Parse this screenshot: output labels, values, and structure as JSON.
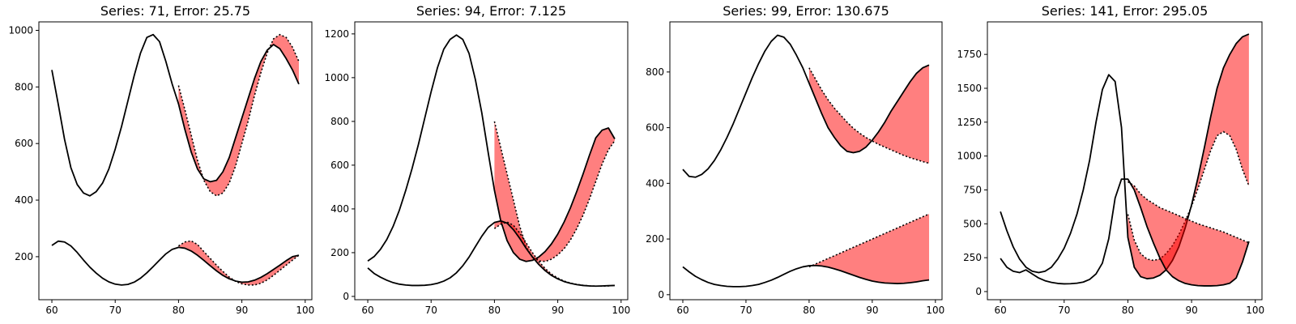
{
  "chart_data": [
    {
      "type": "line",
      "title": "Series: 71, Error: 25.75",
      "xlabel": "",
      "ylabel": "",
      "xlim": [
        57.95,
        101.05
      ],
      "ylim": [
        48,
        1030
      ],
      "xticks": [
        60,
        70,
        80,
        90,
        100
      ],
      "yticks": [
        200,
        400,
        600,
        800,
        1000
      ],
      "grid": false,
      "forecast_start": 80,
      "error_fill_color": "#ff0000",
      "series": [
        {
          "x": [
            60,
            61,
            62,
            63,
            64,
            65,
            66,
            67,
            68,
            69,
            70,
            71,
            72,
            73,
            74,
            75,
            76,
            77,
            78,
            79,
            80,
            81,
            82,
            83,
            84,
            85,
            86,
            87,
            88,
            89,
            90,
            91,
            92,
            93,
            94,
            95,
            96,
            97,
            98,
            99
          ],
          "values": [
            860,
            740,
            615,
            515,
            455,
            425,
            415,
            430,
            460,
            510,
            580,
            660,
            750,
            840,
            920,
            975,
            985,
            960,
            890,
            810,
            740,
            650,
            570,
            510,
            475,
            465,
            470,
            500,
            550,
            620,
            690,
            760,
            830,
            890,
            930,
            950,
            935,
            900,
            860,
            810
          ],
          "forecast": [
            null,
            null,
            null,
            null,
            null,
            null,
            null,
            null,
            null,
            null,
            null,
            null,
            null,
            null,
            null,
            null,
            null,
            null,
            null,
            null,
            805,
            720,
            630,
            540,
            470,
            430,
            415,
            425,
            460,
            520,
            600,
            680,
            770,
            850,
            920,
            970,
            985,
            975,
            940,
            890
          ]
        },
        {
          "x": [
            60,
            61,
            62,
            63,
            64,
            65,
            66,
            67,
            68,
            69,
            70,
            71,
            72,
            73,
            74,
            75,
            76,
            77,
            78,
            79,
            80,
            81,
            82,
            83,
            84,
            85,
            86,
            87,
            88,
            89,
            90,
            91,
            92,
            93,
            94,
            95,
            96,
            97,
            98,
            99
          ],
          "values": [
            240,
            255,
            252,
            238,
            215,
            188,
            163,
            142,
            124,
            111,
            103,
            100,
            102,
            110,
            124,
            143,
            165,
            188,
            210,
            226,
            233,
            230,
            220,
            205,
            187,
            168,
            150,
            134,
            122,
            114,
            110,
            111,
            117,
            127,
            140,
            155,
            170,
            186,
            200,
            205
          ],
          "forecast": [
            null,
            null,
            null,
            null,
            null,
            null,
            null,
            null,
            null,
            null,
            null,
            null,
            null,
            null,
            null,
            null,
            null,
            null,
            null,
            null,
            238,
            252,
            256,
            243,
            218,
            194,
            170,
            148,
            128,
            113,
            104,
            100,
            100,
            106,
            118,
            134,
            152,
            170,
            188,
            205
          ]
        }
      ]
    },
    {
      "type": "line",
      "title": "Series: 94, Error: 7.125",
      "xlabel": "",
      "ylabel": "",
      "xlim": [
        57.95,
        101.05
      ],
      "ylim": [
        -15,
        1255
      ],
      "xticks": [
        60,
        70,
        80,
        90,
        100
      ],
      "yticks": [
        0,
        200,
        400,
        600,
        800,
        1000,
        1200
      ],
      "grid": false,
      "forecast_start": 80,
      "error_fill_color": "#ff0000",
      "series": [
        {
          "x": [
            60,
            61,
            62,
            63,
            64,
            65,
            66,
            67,
            68,
            69,
            70,
            71,
            72,
            73,
            74,
            75,
            76,
            77,
            78,
            79,
            80,
            81,
            82,
            83,
            84,
            85,
            86,
            87,
            88,
            89,
            90,
            91,
            92,
            93,
            94,
            95,
            96,
            97,
            98,
            99
          ],
          "values": [
            162,
            182,
            215,
            260,
            320,
            395,
            485,
            585,
            695,
            815,
            935,
            1045,
            1130,
            1175,
            1195,
            1175,
            1110,
            990,
            840,
            660,
            485,
            345,
            255,
            200,
            170,
            160,
            165,
            180,
            205,
            240,
            285,
            340,
            405,
            480,
            560,
            645,
            725,
            760,
            770,
            720
          ],
          "forecast": [
            null,
            null,
            null,
            null,
            null,
            null,
            null,
            null,
            null,
            null,
            null,
            null,
            null,
            null,
            null,
            null,
            null,
            null,
            null,
            null,
            800,
            680,
            560,
            440,
            320,
            230,
            180,
            162,
            160,
            170,
            190,
            218,
            258,
            310,
            372,
            445,
            525,
            605,
            670,
            712
          ]
        },
        {
          "x": [
            60,
            61,
            62,
            63,
            64,
            65,
            66,
            67,
            68,
            69,
            70,
            71,
            72,
            73,
            74,
            75,
            76,
            77,
            78,
            79,
            80,
            81,
            82,
            83,
            84,
            85,
            86,
            87,
            88,
            89,
            90,
            91,
            92,
            93,
            94,
            95,
            96,
            97,
            98,
            99
          ],
          "values": [
            130,
            105,
            88,
            74,
            63,
            56,
            52,
            50,
            50,
            51,
            54,
            60,
            70,
            85,
            108,
            140,
            180,
            228,
            275,
            315,
            338,
            345,
            335,
            305,
            265,
            220,
            180,
            146,
            118,
            96,
            80,
            68,
            60,
            54,
            50,
            48,
            47,
            48,
            49,
            50
          ],
          "forecast": [
            null,
            null,
            null,
            null,
            null,
            null,
            null,
            null,
            null,
            null,
            null,
            null,
            null,
            null,
            null,
            null,
            null,
            null,
            null,
            null,
            310,
            330,
            340,
            325,
            290,
            245,
            200,
            160,
            128,
            102,
            84,
            70,
            61,
            55,
            51,
            48,
            47,
            47,
            48,
            50
          ]
        }
      ]
    },
    {
      "type": "line",
      "title": "Series: 99, Error: 130.675",
      "xlabel": "",
      "ylabel": "",
      "xlim": [
        57.95,
        101.05
      ],
      "ylim": [
        -18,
        980
      ],
      "xticks": [
        60,
        70,
        80,
        90,
        100
      ],
      "yticks": [
        0,
        200,
        400,
        600,
        800
      ],
      "grid": false,
      "forecast_start": 80,
      "error_fill_color": "#ff0000",
      "series": [
        {
          "x": [
            60,
            61,
            62,
            63,
            64,
            65,
            66,
            67,
            68,
            69,
            70,
            71,
            72,
            73,
            74,
            75,
            76,
            77,
            78,
            79,
            80,
            81,
            82,
            83,
            84,
            85,
            86,
            87,
            88,
            89,
            90,
            91,
            92,
            93,
            94,
            95,
            96,
            97,
            98,
            99
          ],
          "values": [
            450,
            425,
            422,
            432,
            452,
            482,
            520,
            565,
            615,
            670,
            725,
            780,
            830,
            875,
            910,
            932,
            925,
            900,
            860,
            815,
            760,
            705,
            650,
            600,
            565,
            535,
            515,
            510,
            515,
            530,
            555,
            585,
            620,
            660,
            695,
            730,
            765,
            795,
            815,
            825
          ],
          "forecast": [
            null,
            null,
            null,
            null,
            null,
            null,
            null,
            null,
            null,
            null,
            null,
            null,
            null,
            null,
            null,
            null,
            null,
            null,
            null,
            null,
            815,
            775,
            735,
            700,
            670,
            645,
            620,
            598,
            580,
            565,
            552,
            540,
            530,
            520,
            510,
            500,
            492,
            485,
            478,
            472
          ]
        },
        {
          "x": [
            60,
            61,
            62,
            63,
            64,
            65,
            66,
            67,
            68,
            69,
            70,
            71,
            72,
            73,
            74,
            75,
            76,
            77,
            78,
            79,
            80,
            81,
            82,
            83,
            84,
            85,
            86,
            87,
            88,
            89,
            90,
            91,
            92,
            93,
            94,
            95,
            96,
            97,
            98,
            99
          ],
          "values": [
            100,
            82,
            66,
            54,
            44,
            37,
            33,
            30,
            29,
            29,
            30,
            33,
            37,
            44,
            52,
            62,
            73,
            84,
            93,
            100,
            104,
            105,
            103,
            99,
            93,
            86,
            78,
            70,
            62,
            55,
            49,
            45,
            42,
            41,
            40,
            41,
            43,
            46,
            50,
            53
          ],
          "forecast": [
            null,
            null,
            null,
            null,
            null,
            null,
            null,
            null,
            null,
            null,
            null,
            null,
            null,
            null,
            null,
            null,
            null,
            null,
            null,
            null,
            100,
            110,
            120,
            130,
            140,
            150,
            160,
            170,
            180,
            190,
            200,
            210,
            220,
            230,
            240,
            250,
            260,
            270,
            280,
            290
          ]
        }
      ]
    },
    {
      "type": "line",
      "title": "Series: 141, Error: 295.05",
      "xlabel": "",
      "ylabel": "",
      "xlim": [
        57.95,
        101.05
      ],
      "ylim": [
        -60,
        1990
      ],
      "xticks": [
        60,
        70,
        80,
        90,
        100
      ],
      "yticks": [
        0,
        250,
        500,
        750,
        1000,
        1250,
        1500,
        1750
      ],
      "grid": false,
      "forecast_start": 80,
      "error_fill_color": "#ff0000",
      "series": [
        {
          "x": [
            60,
            61,
            62,
            63,
            64,
            65,
            66,
            67,
            68,
            69,
            70,
            71,
            72,
            73,
            74,
            75,
            76,
            77,
            78,
            79,
            80,
            81,
            82,
            83,
            84,
            85,
            86,
            87,
            88,
            89,
            90,
            91,
            92,
            93,
            94,
            95,
            96,
            97,
            98,
            99
          ],
          "values": [
            590,
            450,
            330,
            240,
            180,
            150,
            140,
            150,
            180,
            240,
            320,
            430,
            570,
            750,
            970,
            1250,
            1490,
            1600,
            1550,
            1210,
            400,
            180,
            110,
            95,
            100,
            120,
            160,
            230,
            330,
            470,
            640,
            840,
            1060,
            1290,
            1500,
            1650,
            1750,
            1830,
            1880,
            1900
          ],
          "forecast": [
            null,
            null,
            null,
            null,
            null,
            null,
            null,
            null,
            null,
            null,
            null,
            null,
            null,
            null,
            null,
            null,
            null,
            null,
            null,
            null,
            570,
            380,
            280,
            240,
            230,
            240,
            280,
            340,
            420,
            520,
            630,
            760,
            900,
            1040,
            1150,
            1180,
            1150,
            1050,
            900,
            780
          ]
        },
        {
          "x": [
            60,
            61,
            62,
            63,
            64,
            65,
            66,
            67,
            68,
            69,
            70,
            71,
            72,
            73,
            74,
            75,
            76,
            77,
            78,
            79,
            80,
            81,
            82,
            83,
            84,
            85,
            86,
            87,
            88,
            89,
            90,
            91,
            92,
            93,
            94,
            95,
            96,
            97,
            98,
            99
          ],
          "values": [
            245,
            180,
            150,
            140,
            160,
            130,
            100,
            80,
            68,
            60,
            57,
            58,
            62,
            70,
            90,
            130,
            210,
            390,
            690,
            830,
            830,
            750,
            620,
            480,
            360,
            250,
            160,
            110,
            80,
            60,
            50,
            44,
            42,
            42,
            44,
            50,
            62,
            100,
            220,
            370
          ],
          "forecast": [
            null,
            null,
            null,
            null,
            null,
            null,
            null,
            null,
            null,
            null,
            null,
            null,
            null,
            null,
            null,
            null,
            null,
            null,
            null,
            null,
            810,
            780,
            720,
            680,
            650,
            620,
            600,
            580,
            560,
            540,
            520,
            500,
            485,
            470,
            455,
            440,
            420,
            400,
            380,
            360
          ]
        }
      ]
    }
  ]
}
